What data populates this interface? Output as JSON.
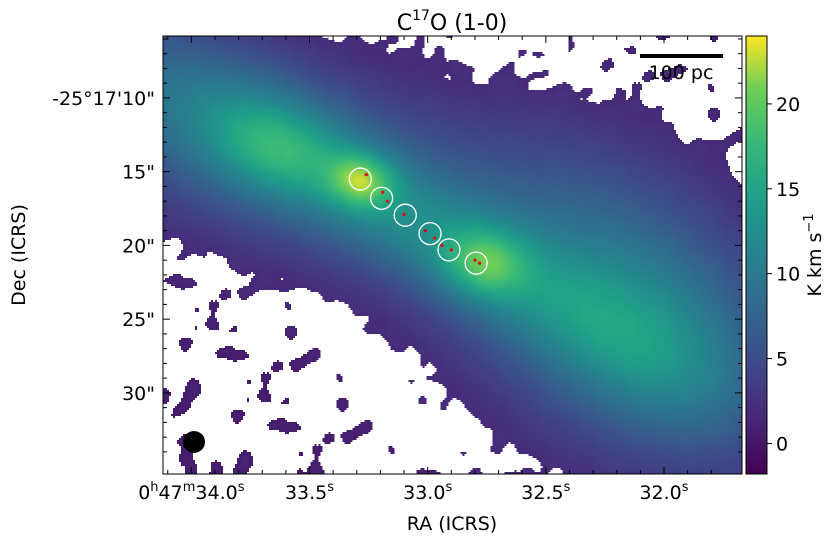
{
  "chart_data": {
    "type": "heatmap",
    "title_main": "C",
    "title_sup": "17",
    "title_rest": "O (1-0)",
    "xlabel": "RA (ICRS)",
    "ylabel": "Dec (ICRS)",
    "x_ticks": [
      {
        "ra_s": 34.0,
        "text": "0h47m34.0s",
        "parts": [
          "0",
          "h",
          "47",
          "m",
          "34.0",
          "s"
        ]
      },
      {
        "ra_s": 33.5,
        "text": "33.5s",
        "parts": [
          "33.5",
          "s"
        ]
      },
      {
        "ra_s": 33.0,
        "text": "33.0s",
        "parts": [
          "33.0",
          "s"
        ]
      },
      {
        "ra_s": 32.5,
        "text": "32.5s",
        "parts": [
          "32.5",
          "s"
        ]
      },
      {
        "ra_s": 32.0,
        "text": "32.0s",
        "parts": [
          "32.0",
          "s"
        ]
      }
    ],
    "xlim": [
      34.12,
      31.67
    ],
    "y_ticks": [
      {
        "dec_s": 10,
        "text": "-25°17'10\""
      },
      {
        "dec_s": 15,
        "text": "15\""
      },
      {
        "dec_s": 20,
        "text": "20\""
      },
      {
        "dec_s": 25,
        "text": "25\""
      },
      {
        "dec_s": 30,
        "text": "30\""
      }
    ],
    "ylim": [
      5.8,
      35.5
    ],
    "colorbar": {
      "label_main": "K km s",
      "label_sup": "−1",
      "ticks": [
        0,
        5,
        10,
        15,
        20
      ],
      "range": [
        -1.8,
        24.0
      ],
      "colormap": "viridis"
    },
    "scalebar_label": "100 pc",
    "apertures": [
      {
        "ra_s": 33.285,
        "dec_s": 15.5
      },
      {
        "ra_s": 33.195,
        "dec_s": 16.8
      },
      {
        "ra_s": 33.095,
        "dec_s": 17.95
      },
      {
        "ra_s": 32.99,
        "dec_s": 19.2
      },
      {
        "ra_s": 32.91,
        "dec_s": 20.3
      },
      {
        "ra_s": 32.795,
        "dec_s": 21.2
      }
    ],
    "red_markers": [
      {
        "ra_s": 33.26,
        "dec_s": 15.2
      },
      {
        "ra_s": 33.19,
        "dec_s": 16.4
      },
      {
        "ra_s": 33.17,
        "dec_s": 17.0
      },
      {
        "ra_s": 33.1,
        "dec_s": 17.9
      },
      {
        "ra_s": 33.01,
        "dec_s": 19.0
      },
      {
        "ra_s": 32.97,
        "dec_s": 19.5
      },
      {
        "ra_s": 32.94,
        "dec_s": 20.0
      },
      {
        "ra_s": 32.9,
        "dec_s": 20.3
      },
      {
        "ra_s": 32.8,
        "dec_s": 21.0
      },
      {
        "ra_s": 32.78,
        "dec_s": 21.2
      }
    ],
    "components": [
      {
        "name": "northeast-lobe",
        "ra_s": 33.8,
        "dec_s": 12.5,
        "peak": 9.0,
        "sigma_major": 9.0,
        "sigma_minor": 4.5,
        "pa_deg": -28
      },
      {
        "name": "clump-33.7",
        "ra_s": 33.65,
        "dec_s": 13.4,
        "peak": 5.0,
        "sigma_major": 2.6,
        "sigma_minor": 2.0,
        "pa_deg": -28
      },
      {
        "name": "central-ridge",
        "ra_s": 33.05,
        "dec_s": 18.5,
        "peak": 6.0,
        "sigma_major": 11.0,
        "sigma_minor": 2.4,
        "pa_deg": -35
      },
      {
        "name": "ridge-peak-west",
        "ra_s": 32.76,
        "dec_s": 21.2,
        "peak": 8.0,
        "sigma_major": 1.7,
        "sigma_minor": 1.6,
        "pa_deg": -35
      },
      {
        "name": "ridge-peak-east",
        "ra_s": 33.28,
        "dec_s": 15.6,
        "peak": 9.5,
        "sigma_major": 1.3,
        "sigma_minor": 1.2,
        "pa_deg": -35
      },
      {
        "name": "southwest-lobe",
        "ra_s": 32.2,
        "dec_s": 23.8,
        "peak": 9.5,
        "sigma_major": 9.0,
        "sigma_minor": 6.0,
        "pa_deg": -50
      },
      {
        "name": "southwest-tail",
        "ra_s": 32.05,
        "dec_s": 27.0,
        "peak": 4.0,
        "sigma_major": 5.0,
        "sigma_minor": 3.5,
        "pa_deg": -45
      }
    ]
  }
}
